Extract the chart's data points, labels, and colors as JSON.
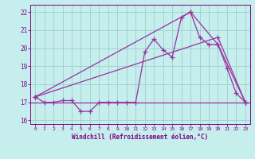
{
  "x_data": [
    0,
    1,
    2,
    3,
    4,
    5,
    6,
    7,
    8,
    9,
    10,
    11,
    12,
    13,
    14,
    15,
    16,
    17,
    18,
    19,
    20,
    21,
    22,
    23
  ],
  "line1": [
    17.3,
    17.0,
    17.0,
    17.1,
    17.1,
    16.5,
    16.5,
    17.0,
    17.0,
    17.0,
    17.0,
    17.0,
    19.8,
    20.5,
    19.9,
    19.5,
    21.7,
    22.0,
    20.6,
    20.2,
    20.2,
    18.9,
    17.5,
    17.0
  ],
  "line2_x": [
    0,
    17,
    20,
    23
  ],
  "line2": [
    17.3,
    22.0,
    20.2,
    17.0
  ],
  "line3_x": [
    0,
    20,
    23
  ],
  "line3": [
    17.3,
    20.6,
    17.0
  ],
  "hline_y": 17.0,
  "bg_color": "#c5eeed",
  "grid_color": "#9ecece",
  "line_color": "#9b30a0",
  "xlim": [
    -0.5,
    23.5
  ],
  "ylim": [
    15.8,
    22.4
  ],
  "xlabel": "Windchill (Refroidissement éolien,°C)",
  "yticks": [
    16,
    17,
    18,
    19,
    20,
    21,
    22
  ],
  "xticks": [
    0,
    1,
    2,
    3,
    4,
    5,
    6,
    7,
    8,
    9,
    10,
    11,
    12,
    13,
    14,
    15,
    16,
    17,
    18,
    19,
    20,
    21,
    22,
    23
  ],
  "markersize": 4,
  "linewidth": 0.9,
  "font_color": "#800080",
  "xlabel_fontsize": 5.5,
  "xtick_fontsize": 4.5,
  "ytick_fontsize": 5.5
}
